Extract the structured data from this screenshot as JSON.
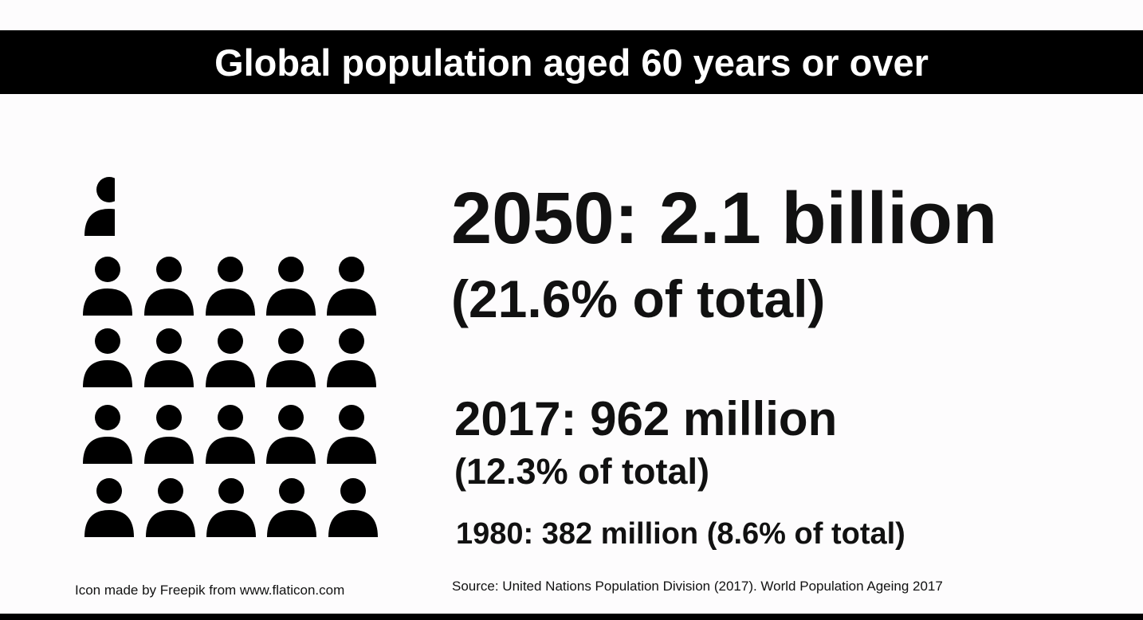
{
  "header": {
    "title": "Global population aged 60 years or over"
  },
  "stats": {
    "y2050": {
      "headline": "2050: 2.1 billion",
      "share": "(21.6% of total)"
    },
    "y2017": {
      "headline": "2017: 962 million",
      "share": "(12.3% of total)"
    },
    "y1980": {
      "headline": "1980: 382 million (8.6% of total)"
    }
  },
  "icon_grid": {
    "icon": "person-icon",
    "count": 21,
    "color": "#000000"
  },
  "footer": {
    "credit": "Icon made by Freepik from www.flaticon.com",
    "source": "Source: United Nations Population Division (2017). World Population Ageing 2017"
  }
}
